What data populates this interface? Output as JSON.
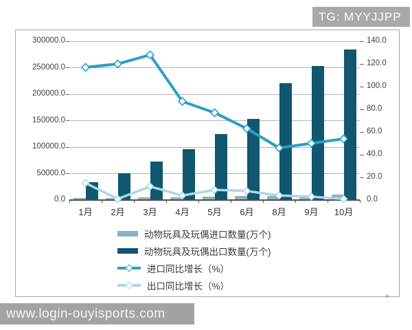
{
  "watermarks": {
    "top_right": "TG: MYYJJPP",
    "bottom_left": "www.login-ouyisports.com"
  },
  "chart_data": {
    "type": "combo-bar-line",
    "title": "",
    "categories": [
      "1月",
      "2月",
      "3月",
      "4月",
      "5月",
      "6月",
      "8月",
      "9月",
      "10月"
    ],
    "series": [
      {
        "name": "动物玩具及玩偶进口数量(万个)",
        "type": "bar",
        "axis": "left",
        "color": "#8fb0be",
        "values": [
          2500,
          3000,
          4000,
          4500,
          5500,
          6000,
          7000,
          8000,
          9000
        ]
      },
      {
        "name": "动物玩具及玩偶出口数量(万个)",
        "type": "bar",
        "axis": "left",
        "color": "#10576f",
        "values": [
          33000,
          50000,
          72000,
          95000,
          124000,
          152000,
          220000,
          252000,
          283000
        ]
      },
      {
        "name": "进口同比增长（%）",
        "type": "line",
        "axis": "right",
        "color": "#2b9fc6",
        "values": [
          117,
          120,
          128,
          87,
          77,
          63,
          46,
          50,
          54
        ]
      },
      {
        "name": "出口同比增长（%）",
        "type": "line",
        "axis": "right",
        "color": "#a9d9e8",
        "values": [
          15,
          1,
          12,
          4,
          9,
          8,
          4,
          3,
          1
        ]
      }
    ],
    "left_axis": {
      "min": 0,
      "max": 300000,
      "step": 50000,
      "tick_values": [
        0,
        50000,
        100000,
        150000,
        200000,
        250000,
        300000
      ],
      "tick_labels": [
        "0.0",
        "50000.0",
        "100000.0",
        "150000.0",
        "200000.0",
        "250000.0",
        "300000.0"
      ]
    },
    "right_axis": {
      "min": 0,
      "max": 140,
      "step": 20,
      "tick_values": [
        0,
        20,
        40,
        60,
        80,
        100,
        120,
        140
      ],
      "tick_labels": [
        "0.0",
        "20.0",
        "40.0",
        "60.0",
        "80.0",
        "100.0",
        "120.0",
        "140.0"
      ]
    },
    "grid": true,
    "legend_position": "bottom-left"
  }
}
